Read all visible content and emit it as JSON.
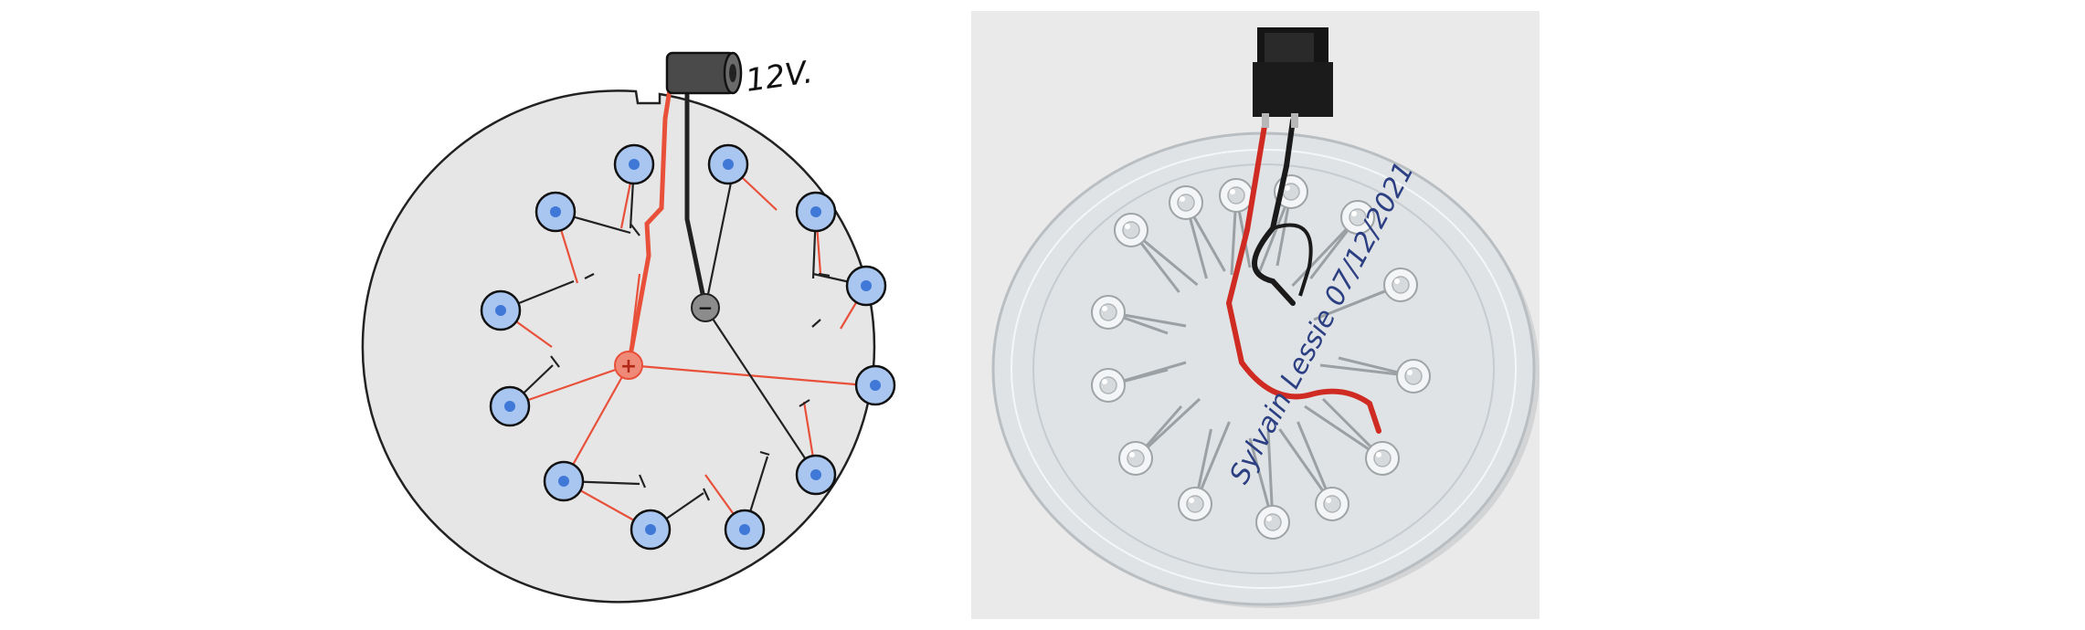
{
  "diagram": {
    "voltage_label": "12V.",
    "positive_symbol": "+",
    "negative_symbol": "−",
    "led_count": 14,
    "colors": {
      "board": "#e6e6e6",
      "board_stroke": "#222222",
      "led_fill": "#a9c6f0",
      "led_core": "#3f78d6",
      "positive_wire": "#e8503a",
      "negative_wire": "#222222",
      "positive_terminal": "#f08a78",
      "negative_terminal": "#8c8c8c",
      "jack": "#4a4a4a"
    }
  },
  "photo": {
    "handwritten_text": "Sylvain Lessie 07/12/2021",
    "colors": {
      "background": "#eaeaea",
      "acrylic": "#dfe3e6",
      "solder": "#c7cacb",
      "red_wire": "#d02b22",
      "black_wire": "#1a1a1a",
      "jack": "#151515"
    }
  }
}
